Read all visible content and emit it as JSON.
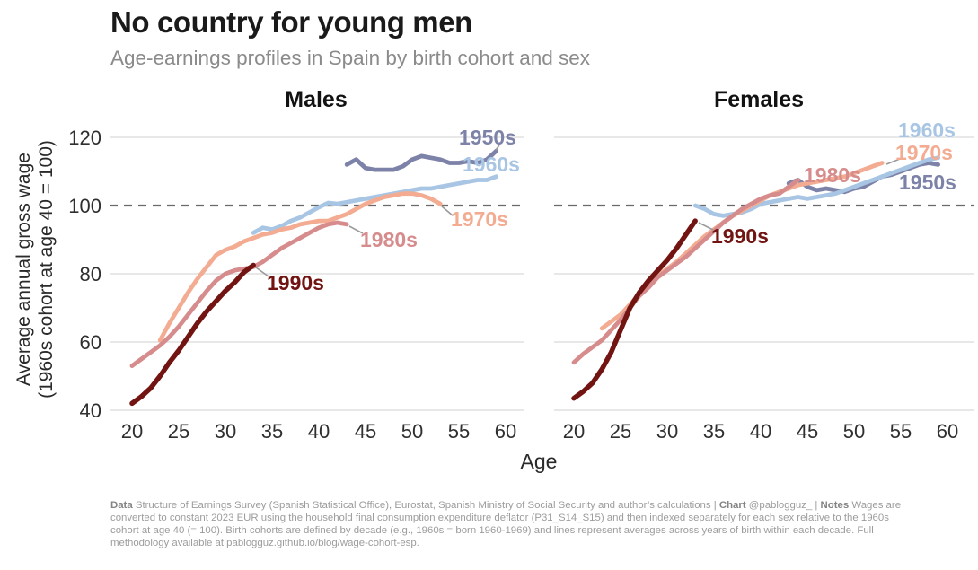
{
  "header": {
    "title": "No country for young men",
    "subtitle": "Age-earnings profiles in Spain by birth cohort and sex"
  },
  "y_axis": {
    "label_line1": "Average annual gross wage",
    "label_line2": "(1960s cohort at age 40 = 100)"
  },
  "x_axis": {
    "label": "Age"
  },
  "chart_data": [
    {
      "type": "line",
      "title": "Males",
      "xlabel": "Age",
      "x_ticks": [
        20,
        25,
        30,
        35,
        40,
        45,
        50,
        55,
        60
      ],
      "y_ticks": [
        40,
        60,
        80,
        100,
        120
      ],
      "reference_line": 100,
      "xlim": [
        18.5,
        61.5
      ],
      "ylim": [
        38,
        124
      ],
      "grid": true,
      "legend_position": "inline-labels",
      "series": [
        {
          "name": "1950s",
          "color": "#7d82a8",
          "points": [
            [
              43,
              112
            ],
            [
              44,
              113.5
            ],
            [
              45,
              111
            ],
            [
              46,
              110.5
            ],
            [
              47,
              110.5
            ],
            [
              48,
              110.5
            ],
            [
              49,
              111.5
            ],
            [
              50,
              113.5
            ],
            [
              51,
              114.5
            ],
            [
              52,
              114
            ],
            [
              53,
              113.5
            ],
            [
              54,
              112.5
            ],
            [
              55,
              112.5
            ],
            [
              56,
              113
            ],
            [
              57,
              112.5
            ],
            [
              58,
              113.5
            ],
            [
              59,
              116
            ]
          ]
        },
        {
          "name": "1960s",
          "color": "#a8c6e4",
          "points": [
            [
              33,
              92
            ],
            [
              34,
              93.5
            ],
            [
              35,
              93
            ],
            [
              36,
              94
            ],
            [
              37,
              95.5
            ],
            [
              38,
              96.5
            ],
            [
              39,
              98
            ],
            [
              40,
              99.5
            ],
            [
              41,
              100.8
            ],
            [
              42,
              100.5
            ],
            [
              43,
              101
            ],
            [
              44,
              101.5
            ],
            [
              45,
              102
            ],
            [
              46,
              102.5
            ],
            [
              47,
              103
            ],
            [
              48,
              103.5
            ],
            [
              49,
              104
            ],
            [
              50,
              104.5
            ],
            [
              51,
              105
            ],
            [
              52,
              105
            ],
            [
              53,
              105.5
            ],
            [
              54,
              106
            ],
            [
              55,
              106.5
            ],
            [
              56,
              107
            ],
            [
              57,
              107.5
            ],
            [
              58,
              107.5
            ],
            [
              59,
              108.5
            ]
          ]
        },
        {
          "name": "1970s",
          "color": "#f3ac92",
          "points": [
            [
              23,
              60.5
            ],
            [
              24,
              65.5
            ],
            [
              25,
              70
            ],
            [
              26,
              74.5
            ],
            [
              27,
              78.5
            ],
            [
              28,
              82
            ],
            [
              29,
              85.5
            ],
            [
              30,
              87
            ],
            [
              31,
              88
            ],
            [
              32,
              89.5
            ],
            [
              33,
              90.5
            ],
            [
              34,
              91.5
            ],
            [
              35,
              92
            ],
            [
              36,
              93
            ],
            [
              37,
              93.5
            ],
            [
              38,
              94.5
            ],
            [
              39,
              95
            ],
            [
              40,
              95.5
            ],
            [
              41,
              95.5
            ],
            [
              42,
              96.5
            ],
            [
              43,
              97.5
            ],
            [
              44,
              99
            ],
            [
              45,
              100.5
            ],
            [
              46,
              101.5
            ],
            [
              47,
              102.5
            ],
            [
              48,
              103
            ],
            [
              49,
              103.5
            ],
            [
              50,
              103.5
            ],
            [
              51,
              103
            ],
            [
              52,
              102
            ],
            [
              53,
              100.5
            ]
          ]
        },
        {
          "name": "1980s",
          "color": "#d68c8c",
          "points": [
            [
              20,
              53
            ],
            [
              21,
              55
            ],
            [
              22,
              57
            ],
            [
              23,
              59
            ],
            [
              24,
              61.5
            ],
            [
              25,
              64.5
            ],
            [
              26,
              68
            ],
            [
              27,
              71.5
            ],
            [
              28,
              75
            ],
            [
              29,
              78
            ],
            [
              30,
              80
            ],
            [
              31,
              81
            ],
            [
              32,
              81.5
            ],
            [
              33,
              82
            ],
            [
              34,
              83.5
            ],
            [
              35,
              85.5
            ],
            [
              36,
              87.5
            ],
            [
              37,
              89
            ],
            [
              38,
              90.5
            ],
            [
              39,
              92
            ],
            [
              40,
              93.5
            ],
            [
              41,
              94.5
            ],
            [
              42,
              95
            ],
            [
              43,
              94.5
            ]
          ]
        },
        {
          "name": "1990s",
          "color": "#721412",
          "points": [
            [
              20,
              42
            ],
            [
              21,
              44
            ],
            [
              22,
              46.5
            ],
            [
              23,
              50
            ],
            [
              24,
              54
            ],
            [
              25,
              57.5
            ],
            [
              26,
              61.5
            ],
            [
              27,
              65.5
            ],
            [
              28,
              69
            ],
            [
              29,
              72
            ],
            [
              30,
              75
            ],
            [
              31,
              77.5
            ],
            [
              32,
              80.5
            ],
            [
              33,
              82.5
            ]
          ]
        }
      ]
    },
    {
      "type": "line",
      "title": "Females",
      "xlabel": "Age",
      "x_ticks": [
        20,
        25,
        30,
        35,
        40,
        45,
        50,
        55,
        60
      ],
      "y_ticks": [
        40,
        60,
        80,
        100,
        120
      ],
      "reference_line": 100,
      "xlim": [
        18.5,
        61.5
      ],
      "ylim": [
        38,
        124
      ],
      "grid": true,
      "legend_position": "inline-labels",
      "series": [
        {
          "name": "1950s",
          "color": "#7d82a8",
          "points": [
            [
              43,
              106.5
            ],
            [
              44,
              107.5
            ],
            [
              45,
              105.5
            ],
            [
              46,
              104.5
            ],
            [
              47,
              105
            ],
            [
              48,
              104.5
            ],
            [
              49,
              104
            ],
            [
              50,
              105
            ],
            [
              51,
              105.5
            ],
            [
              52,
              107
            ],
            [
              53,
              108.5
            ],
            [
              54,
              109
            ],
            [
              55,
              110
            ],
            [
              56,
              111
            ],
            [
              57,
              112
            ],
            [
              58,
              112.5
            ],
            [
              59,
              112
            ]
          ]
        },
        {
          "name": "1960s",
          "color": "#a8c6e4",
          "points": [
            [
              33,
              100
            ],
            [
              34,
              99
            ],
            [
              35,
              97.5
            ],
            [
              36,
              97
            ],
            [
              37,
              97.5
            ],
            [
              38,
              98
            ],
            [
              39,
              99
            ],
            [
              40,
              100.5
            ],
            [
              41,
              101
            ],
            [
              42,
              101.5
            ],
            [
              43,
              102
            ],
            [
              44,
              102.5
            ],
            [
              45,
              102
            ],
            [
              46,
              102.5
            ],
            [
              47,
              103
            ],
            [
              48,
              103.5
            ],
            [
              49,
              104.5
            ],
            [
              50,
              105.5
            ],
            [
              51,
              106.5
            ],
            [
              52,
              107.5
            ],
            [
              53,
              108.5
            ],
            [
              54,
              109.5
            ],
            [
              55,
              110.5
            ],
            [
              56,
              111.5
            ],
            [
              57,
              112.5
            ],
            [
              58,
              113.5
            ],
            [
              59,
              114
            ]
          ]
        },
        {
          "name": "1970s",
          "color": "#f3ac92",
          "points": [
            [
              23,
              64
            ],
            [
              24,
              66
            ],
            [
              25,
              68
            ],
            [
              26,
              71
            ],
            [
              27,
              74
            ],
            [
              28,
              77
            ],
            [
              29,
              79.5
            ],
            [
              30,
              81.5
            ],
            [
              31,
              83.5
            ],
            [
              32,
              86
            ],
            [
              33,
              88.5
            ],
            [
              34,
              91
            ],
            [
              35,
              93
            ],
            [
              36,
              95
            ],
            [
              37,
              97
            ],
            [
              38,
              98.5
            ],
            [
              39,
              100
            ],
            [
              40,
              101.5
            ],
            [
              41,
              103
            ],
            [
              42,
              104
            ],
            [
              43,
              105
            ],
            [
              44,
              106
            ],
            [
              45,
              106.5
            ],
            [
              46,
              107
            ],
            [
              47,
              107.5
            ],
            [
              48,
              108
            ],
            [
              49,
              108.5
            ],
            [
              50,
              109.5
            ],
            [
              51,
              110.5
            ],
            [
              52,
              111.5
            ],
            [
              53,
              112.5
            ]
          ]
        },
        {
          "name": "1980s",
          "color": "#d68c8c",
          "points": [
            [
              20,
              54
            ],
            [
              21,
              56.5
            ],
            [
              22,
              58.5
            ],
            [
              23,
              60.5
            ],
            [
              24,
              63.5
            ],
            [
              25,
              66.5
            ],
            [
              26,
              70
            ],
            [
              27,
              73.5
            ],
            [
              28,
              76
            ],
            [
              29,
              79
            ],
            [
              30,
              81
            ],
            [
              31,
              83
            ],
            [
              32,
              85
            ],
            [
              33,
              87.5
            ],
            [
              34,
              90
            ],
            [
              35,
              92.5
            ],
            [
              36,
              95
            ],
            [
              37,
              97
            ],
            [
              38,
              99
            ],
            [
              39,
              100.5
            ],
            [
              40,
              102
            ],
            [
              41,
              103
            ],
            [
              42,
              103.5
            ],
            [
              43,
              105.5
            ],
            [
              44,
              107.5
            ]
          ]
        },
        {
          "name": "1990s",
          "color": "#721412",
          "points": [
            [
              20,
              43.5
            ],
            [
              21,
              45.5
            ],
            [
              22,
              48
            ],
            [
              23,
              52
            ],
            [
              24,
              57
            ],
            [
              25,
              63.5
            ],
            [
              26,
              70
            ],
            [
              27,
              74.5
            ],
            [
              28,
              78
            ],
            [
              29,
              81
            ],
            [
              30,
              84
            ],
            [
              31,
              87.5
            ],
            [
              32,
              91.5
            ],
            [
              33,
              95.5
            ]
          ]
        }
      ]
    }
  ],
  "footer": {
    "segments": [
      {
        "text": "Data",
        "bold": true
      },
      {
        "text": " Structure of Earnings Survey (Spanish Statistical Office), Eurostat, Spanish Ministry of Social Security and author’s calculations | ",
        "bold": false
      },
      {
        "text": "Chart",
        "bold": true
      },
      {
        "text": " @pablogguz_ | ",
        "bold": false
      },
      {
        "text": "Notes",
        "bold": true
      },
      {
        "text": " Wages are converted to constant 2023 EUR using the household final consumption expenditure deflator (P31_S14_S15) and then indexed separately for each sex relative to the 1960s cohort at age 40 (= 100). Birth cohorts are defined by decade (e.g., 1960s = born 1960-1969) and lines represent averages across years of birth within each decade. Full methodology available at pablogguz.github.io/blog/wage-cohort-esp.",
        "bold": false
      }
    ]
  },
  "style": {
    "grid_color": "#e8e8e8",
    "reference_line_color": "#6a6a6a",
    "pointer_color": "#9a9a9a",
    "background": "#ffffff"
  }
}
